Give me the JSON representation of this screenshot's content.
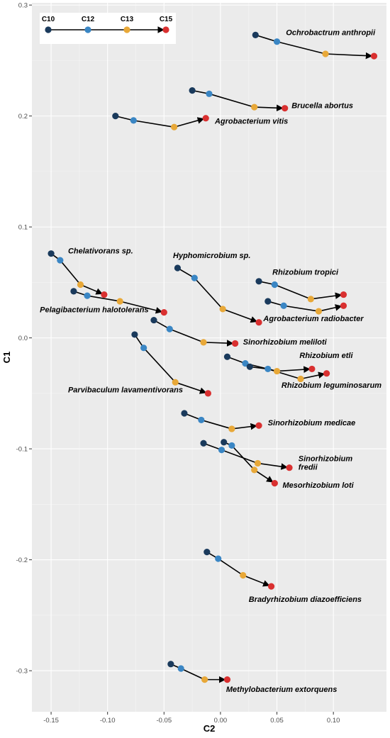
{
  "chart_data": {
    "type": "scatter",
    "title": "",
    "xlabel": "C2",
    "ylabel": "C1",
    "xlim": [
      -0.167,
      0.147
    ],
    "ylim": [
      -0.337,
      0.302
    ],
    "x_ticks": [
      -0.15,
      -0.1,
      -0.05,
      0.0,
      0.05,
      0.1
    ],
    "x_tick_labels": [
      "-0.15",
      "-0.10",
      "-0.05",
      "0.00",
      "0.05",
      "0.10"
    ],
    "y_ticks": [
      0.3,
      0.2,
      0.1,
      0.0,
      -0.1,
      -0.2,
      -0.3
    ],
    "y_tick_labels": [
      "0.3",
      "0.2",
      "0.1",
      "0.0",
      "-0.1",
      "-0.2",
      "-0.3"
    ],
    "grid": true,
    "legend_position": "top-left",
    "stages": [
      {
        "name": "C10",
        "color": "#1a3a5c"
      },
      {
        "name": "C12",
        "color": "#3a86c4"
      },
      {
        "name": "C13",
        "color": "#e8a838"
      },
      {
        "name": "C15",
        "color": "#d93030"
      }
    ],
    "series": [
      {
        "name": "Ochrobactrum anthropii",
        "points": [
          [
            0.031,
            0.273
          ],
          [
            0.05,
            0.267
          ],
          [
            0.093,
            0.256
          ],
          [
            0.136,
            0.254
          ]
        ]
      },
      {
        "name": "Brucella abortus",
        "points": [
          [
            -0.025,
            0.223
          ],
          [
            -0.01,
            0.22
          ],
          [
            0.03,
            0.208
          ],
          [
            0.057,
            0.207
          ]
        ]
      },
      {
        "name": "Agrobacterium vitis",
        "points": [
          [
            -0.093,
            0.2
          ],
          [
            -0.077,
            0.196
          ],
          [
            -0.041,
            0.19
          ],
          [
            -0.013,
            0.198
          ]
        ]
      },
      {
        "name": "Chelativorans sp.",
        "points": [
          [
            -0.15,
            0.076
          ],
          [
            -0.142,
            0.07
          ],
          [
            -0.124,
            0.048
          ],
          [
            -0.103,
            0.039
          ]
        ]
      },
      {
        "name": "Pelagibacterium halotolerans",
        "points": [
          [
            -0.13,
            0.042
          ],
          [
            -0.118,
            0.038
          ],
          [
            -0.089,
            0.033
          ],
          [
            -0.05,
            0.023
          ]
        ]
      },
      {
        "name": "Hyphomicrobium sp.",
        "points": [
          [
            -0.038,
            0.063
          ],
          [
            -0.023,
            0.054
          ],
          [
            0.002,
            0.026
          ],
          [
            0.034,
            0.014
          ]
        ]
      },
      {
        "name": "Rhizobium tropici",
        "points": [
          [
            0.034,
            0.051
          ],
          [
            0.048,
            0.048
          ],
          [
            0.08,
            0.035
          ],
          [
            0.109,
            0.039
          ]
        ]
      },
      {
        "name": "Agrobacterium radiobacter",
        "points": [
          [
            0.042,
            0.033
          ],
          [
            0.056,
            0.029
          ],
          [
            0.087,
            0.024
          ],
          [
            0.109,
            0.029
          ]
        ]
      },
      {
        "name": "Sinorhizobium meliloti",
        "points": [
          [
            -0.059,
            0.016
          ],
          [
            -0.045,
            0.008
          ],
          [
            -0.015,
            -0.004
          ],
          [
            0.013,
            -0.005
          ]
        ]
      },
      {
        "name": "Rhizobium etli",
        "points": [
          [
            0.006,
            -0.017
          ],
          [
            0.022,
            -0.023
          ],
          [
            0.05,
            -0.03
          ],
          [
            0.081,
            -0.028
          ]
        ]
      },
      {
        "name": "Rhizobium leguminosarum",
        "points": [
          [
            0.026,
            -0.026
          ],
          [
            0.042,
            -0.028
          ],
          [
            0.071,
            -0.037
          ],
          [
            0.094,
            -0.032
          ]
        ]
      },
      {
        "name": "Parvibaculum lavamentivorans",
        "points": [
          [
            -0.076,
            0.003
          ],
          [
            -0.068,
            -0.009
          ],
          [
            -0.04,
            -0.04
          ],
          [
            -0.011,
            -0.05
          ]
        ]
      },
      {
        "name": "Sinorhizobium medicae",
        "points": [
          [
            -0.032,
            -0.068
          ],
          [
            -0.017,
            -0.074
          ],
          [
            0.01,
            -0.082
          ],
          [
            0.034,
            -0.079
          ]
        ]
      },
      {
        "name": "Sinorhizobium fredii",
        "points": [
          [
            -0.015,
            -0.095
          ],
          [
            0.001,
            -0.101
          ],
          [
            0.033,
            -0.113
          ],
          [
            0.061,
            -0.117
          ]
        ]
      },
      {
        "name": "Mesorhizobium loti",
        "points": [
          [
            0.003,
            -0.094
          ],
          [
            0.01,
            -0.097
          ],
          [
            0.03,
            -0.119
          ],
          [
            0.048,
            -0.131
          ]
        ]
      },
      {
        "name": "Bradyrhizobium diazoefficiens",
        "points": [
          [
            -0.012,
            -0.193
          ],
          [
            -0.002,
            -0.199
          ],
          [
            0.02,
            -0.214
          ],
          [
            0.045,
            -0.224
          ]
        ]
      },
      {
        "name": "Methylobacterium extorquens",
        "points": [
          [
            -0.044,
            -0.294
          ],
          [
            -0.035,
            -0.298
          ],
          [
            -0.014,
            -0.308
          ],
          [
            0.006,
            -0.308
          ]
        ]
      }
    ]
  }
}
